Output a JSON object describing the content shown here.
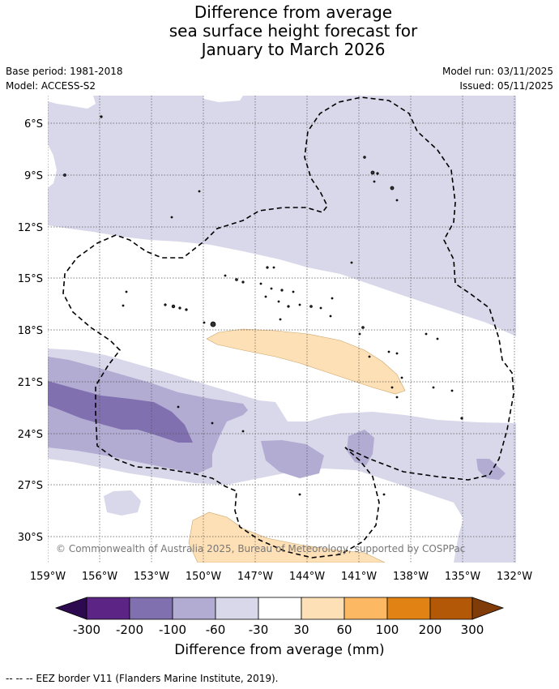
{
  "title": {
    "line1": "Difference from average",
    "line2": "sea surface height forecast for",
    "line3": "January to March 2026"
  },
  "meta": {
    "base_period": "Base period: 1981-2018",
    "model": "Model: ACCESS-S2",
    "model_run": "Model run: 03/11/2025",
    "issued": "Issued: 05/11/2025"
  },
  "map": {
    "lat_labels": [
      "6°S",
      "9°S",
      "12°S",
      "15°S",
      "18°S",
      "21°S",
      "24°S",
      "27°S",
      "30°S"
    ],
    "lon_labels": [
      "159°W",
      "156°W",
      "153°W",
      "150°W",
      "147°W",
      "144°W",
      "141°W",
      "138°W",
      "135°W",
      "132°W"
    ],
    "copyright": "© Commonwealth of Australia 2025, Bureau of Meteorology, supported by COSPPac",
    "colors": {
      "neg300": "#2d0a4f",
      "neg200": "#5c2585",
      "neg100": "#8070b0",
      "neg60": "#b2abd2",
      "neg30": "#d8d8ea",
      "zero": "#ffffff",
      "pos30": "#fee0b6",
      "pos60": "#fdb863",
      "pos100": "#e08214",
      "pos200": "#b35806",
      "pos300": "#7f3b08"
    }
  },
  "colorbar": {
    "ticks": [
      "-300",
      "-200",
      "-100",
      "-60",
      "-30",
      "30",
      "60",
      "100",
      "200",
      "300"
    ],
    "label": "Difference from average (mm)"
  },
  "footnote": "--  --  -- EEZ border V11 (Flanders Marine Institute, 2019)."
}
